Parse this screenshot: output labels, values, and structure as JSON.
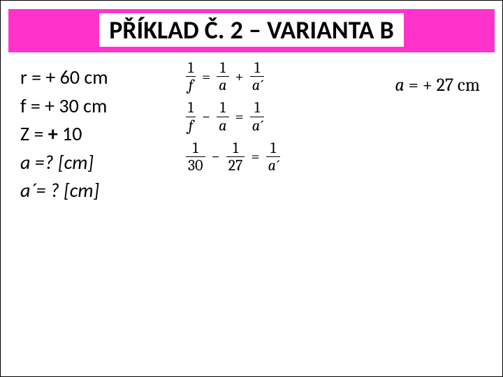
{
  "title": "PŘÍKLAD Č. 2 – VARIANTA B",
  "title_bar_color": "#ff33cc",
  "given": {
    "l1_pre": "r = + 60 cm",
    "l2_pre": "f = + 30 cm",
    "l3_pre": "Z = ",
    "l3_plus": "+",
    "l3_post": " 10",
    "l4": "a =? [cm]",
    "l5": "a´= ? [cm]"
  },
  "eq": {
    "one": "1",
    "f": "f",
    "a": "a",
    "aprime": "a´",
    "thirty": "30",
    "twentyseven": "27",
    "eq": "=",
    "plus": "+",
    "minus": "−"
  },
  "answer": {
    "var": "a",
    "rest": " = + 27 cm"
  }
}
